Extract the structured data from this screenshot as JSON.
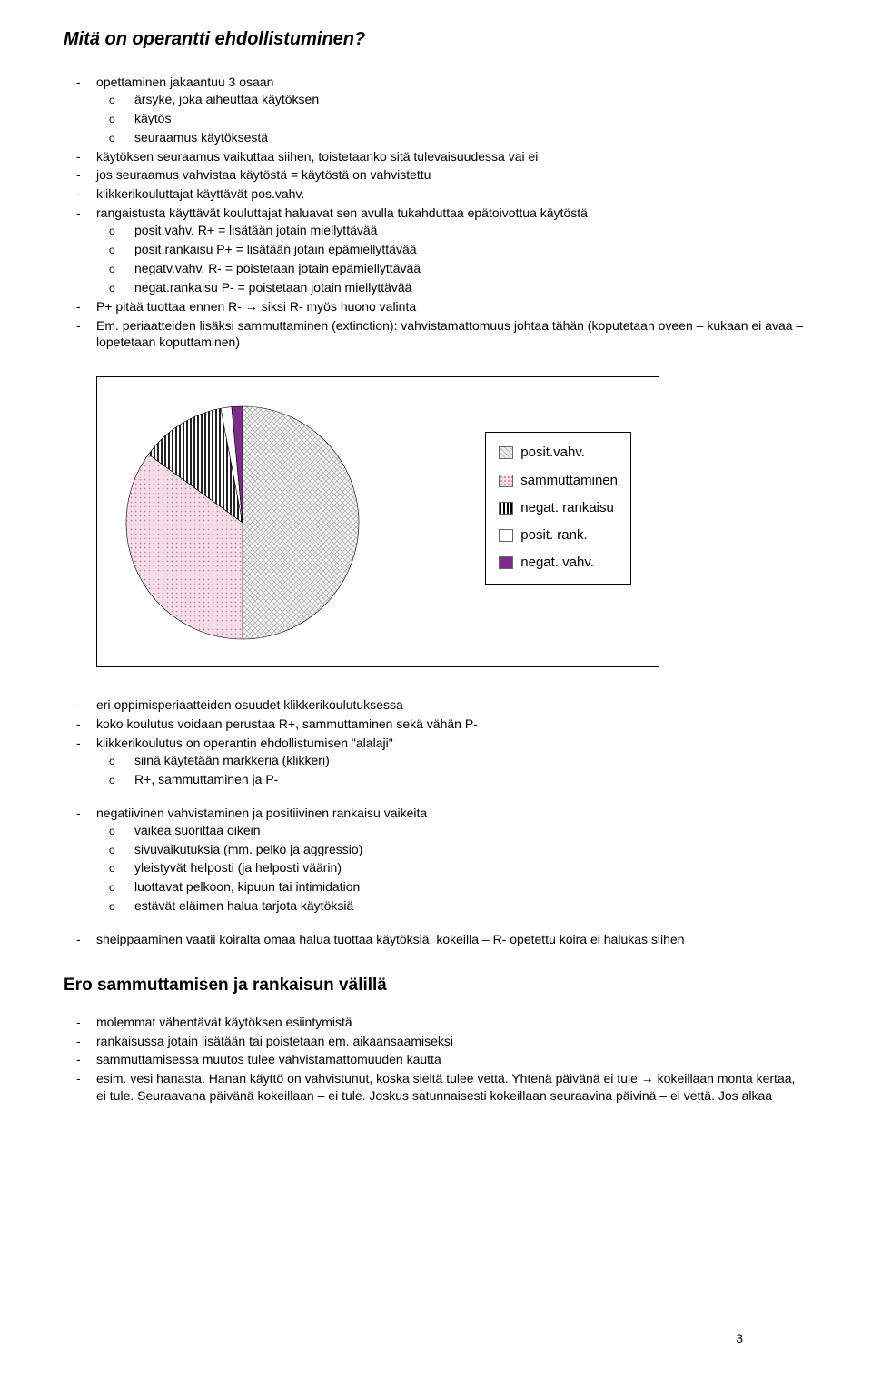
{
  "title": "Mitä on operantti ehdollistuminen?",
  "section1": {
    "items": [
      "opettaminen jakaantuu 3 osaan",
      "käytöksen seuraamus vaikuttaa siihen, toistetaanko sitä tulevaisuudessa vai ei",
      "jos seuraamus vahvistaa käytöstä = käytöstä on vahvistettu",
      "klikkerikouluttajat käyttävät pos.vahv.",
      "rangaistusta käyttävät kouluttajat haluavat sen avulla tukahduttaa epätoivottua käytöstä",
      "P+ pitää tuottaa ennen R- → siksi R- myös huono valinta",
      "Em. periaatteiden lisäksi sammuttaminen (extinction): vahvistamattomuus johtaa tähän (koputetaan oveen – kukaan ei avaa – lopetetaan koputtaminen)"
    ],
    "sub1": [
      "ärsyke, joka aiheuttaa käytöksen",
      "käytös",
      "seuraamus käytöksestä"
    ],
    "sub5": [
      "posit.vahv. R+ = lisätään jotain miellyttävää",
      "posit.rankaisu P+ = lisätään jotain epämiellyttävää",
      "negatv.vahv. R- = poistetaan jotain epämiellyttävää",
      "negat.rankaisu P- = poistetaan jotain miellyttävää"
    ]
  },
  "pie": {
    "type": "pie",
    "size": 260,
    "background_color": "#ffffff",
    "border_color": "#000000",
    "slices": [
      {
        "label": "posit.vahv.",
        "value": 50,
        "pattern": "crosshatch",
        "color": "#e8e8e8"
      },
      {
        "label": "sammuttaminen",
        "value": 35,
        "pattern": "dots",
        "color": "#f4d6e2"
      },
      {
        "label": "negat. rankaisu",
        "value": 12,
        "pattern": "vstripes",
        "color": "#ffffff"
      },
      {
        "label": "posit. rank.",
        "value": 1.5,
        "pattern": "solid",
        "color": "#ffffff"
      },
      {
        "label": "negat. vahv.",
        "value": 1.5,
        "pattern": "solid",
        "color": "#7d2c8b"
      }
    ],
    "legend_fontsize": 15
  },
  "section2": {
    "items": [
      "eri oppimisperiaatteiden osuudet klikkerikoulutuksessa",
      "koko koulutus voidaan perustaa R+, sammuttaminen sekä vähän P-",
      "klikkerikoulutus on operantin ehdollistumisen \"alalaji\""
    ],
    "sub3": [
      "siinä käytetään markkeria (klikkeri)",
      "R+, sammuttaminen ja P-"
    ]
  },
  "section3": {
    "item": "negatiivinen vahvistaminen ja positiivinen rankaisu vaikeita",
    "subs": [
      "vaikea suorittaa oikein",
      "sivuvaikutuksia (mm. pelko ja aggressio)",
      "yleistyvät helposti (ja helposti väärin)",
      "luottavat pelkoon, kipuun tai intimidation",
      "estävät eläimen halua tarjota käytöksiä"
    ]
  },
  "section4": {
    "item": "sheippaaminen vaatii koiralta omaa halua tuottaa käytöksiä, kokeilla – R- opetettu koira ei halukas siihen"
  },
  "heading2": "Ero sammuttamisen ja rankaisun välillä",
  "section5": {
    "items": [
      "molemmat vähentävät käytöksen esiintymistä",
      "rankaisussa jotain lisätään tai poistetaan em. aikaansaamiseksi",
      "sammuttamisessa muutos tulee vahvistamattomuuden kautta",
      "esim. vesi hanasta. Hanan käyttö on vahvistunut, koska sieltä tulee vettä. Yhtenä päivänä ei tule → kokeillaan monta kertaa, ei tule. Seuraavana päivänä kokeillaan – ei tule. Joskus satunnaisesti kokeillaan seuraavina päivinä – ei vettä. Jos alkaa"
    ]
  },
  "pagenum": "3"
}
